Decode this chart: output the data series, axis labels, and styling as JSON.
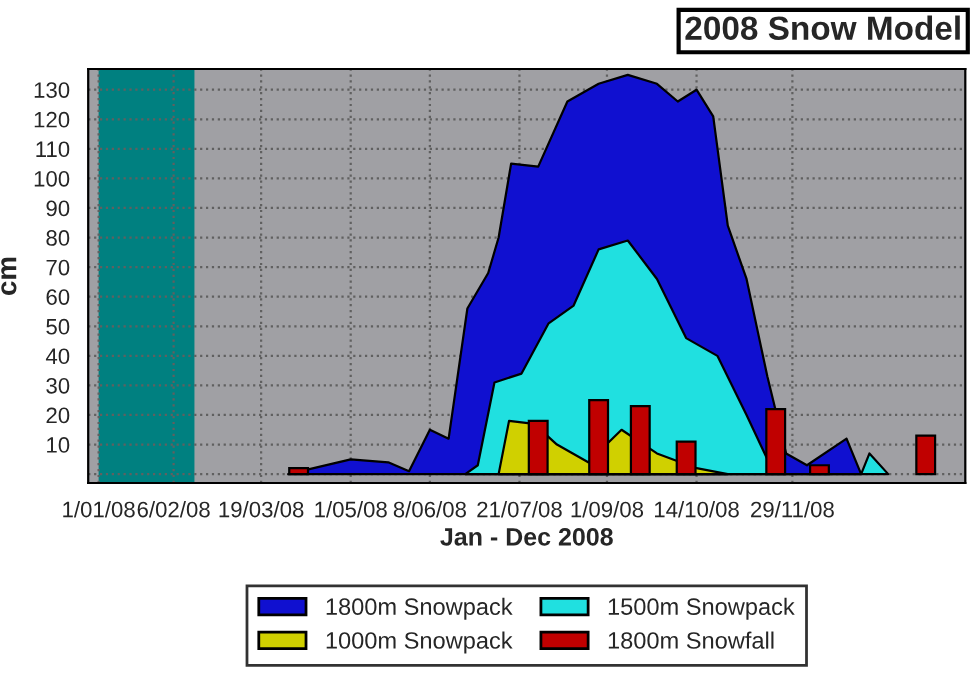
{
  "chart_data": {
    "type": "area",
    "title": "2008 Snow Model",
    "xlabel": "Jan - Dec 2008",
    "ylabel": "cm",
    "xlim": [
      "2007-12-27",
      "2009-02-20"
    ],
    "xticks": [
      {
        "value": "2008-01-01",
        "label": "1/01/08"
      },
      {
        "value": "2008-02-06",
        "label": "6/02/08"
      },
      {
        "value": "2008-03-19",
        "label": "19/03/08"
      },
      {
        "value": "2008-05-01",
        "label": "1/05/08"
      },
      {
        "value": "2008-06-08",
        "label": "8/06/08"
      },
      {
        "value": "2008-07-21",
        "label": "21/07/08"
      },
      {
        "value": "2008-09-01",
        "label": "1/09/08"
      },
      {
        "value": "2008-10-14",
        "label": "14/10/08"
      },
      {
        "value": "2008-11-29",
        "label": "29/11/08"
      }
    ],
    "ylim": [
      -3,
      137
    ],
    "yticks": [
      {
        "value": 0,
        "label": null
      },
      10,
      20,
      30,
      40,
      50,
      60,
      70,
      80,
      90,
      100,
      110,
      120,
      130
    ],
    "grid": true,
    "legend": "bottom",
    "bands": [
      {
        "axis": "x",
        "from": "2008-01-01",
        "to": "2008-02-16",
        "color": "#008080"
      }
    ],
    "series": [
      {
        "name": "1800m Snowpack",
        "color": "#1010d0",
        "x": [
          "2008-04-01",
          "2008-05-01",
          "2008-05-19",
          "2008-05-29",
          "2008-06-08",
          "2008-06-17",
          "2008-06-26",
          "2008-07-06",
          "2008-07-11",
          "2008-07-17",
          "2008-07-30",
          "2008-08-13",
          "2008-08-28",
          "2008-09-11",
          "2008-09-25",
          "2008-10-05",
          "2008-10-14",
          "2008-10-22",
          "2008-10-29",
          "2008-11-07",
          "2008-11-17",
          "2008-11-26",
          "2008-12-06",
          "2008-12-25",
          "2009-01-01"
        ],
        "values": [
          0,
          5,
          4,
          1,
          15,
          12,
          56,
          68,
          80,
          105,
          104,
          126,
          132,
          135,
          132,
          126,
          130,
          121,
          84,
          66,
          33,
          7,
          3,
          12,
          0
        ]
      },
      {
        "name": "1500m Snowpack",
        "color": "#20e0e0",
        "x": [
          "2008-06-25",
          "2008-07-01",
          "2008-07-09",
          "2008-07-22",
          "2008-08-04",
          "2008-08-16",
          "2008-08-28",
          "2008-09-11",
          "2008-09-25",
          "2008-10-09",
          "2008-10-24",
          "2008-11-07",
          "2008-11-17",
          "2008-11-24",
          "2009-01-01",
          "2009-01-05",
          "2009-01-14"
        ],
        "values": [
          0,
          3,
          31,
          34,
          51,
          57,
          76,
          79,
          66,
          46,
          40,
          20,
          5,
          0,
          0,
          7,
          0
        ]
      },
      {
        "name": "1000m Snowpack",
        "color": "#d0d000",
        "x": [
          "2008-07-11",
          "2008-07-16",
          "2008-07-28",
          "2008-08-08",
          "2008-08-23",
          "2008-09-08",
          "2008-09-25",
          "2008-10-14",
          "2008-10-29"
        ],
        "values": [
          0,
          18,
          17,
          10,
          4,
          15,
          7,
          2,
          0
        ]
      },
      {
        "name": "1800m Snowfall",
        "type": "bar",
        "color": "#c00000",
        "x": [
          "2008-04-06",
          "2008-07-30",
          "2008-08-28",
          "2008-09-17",
          "2008-10-09",
          "2008-11-21",
          "2008-12-12",
          "2009-02-01"
        ],
        "values": [
          2,
          18,
          25,
          23,
          11,
          22,
          3,
          13
        ]
      }
    ]
  }
}
